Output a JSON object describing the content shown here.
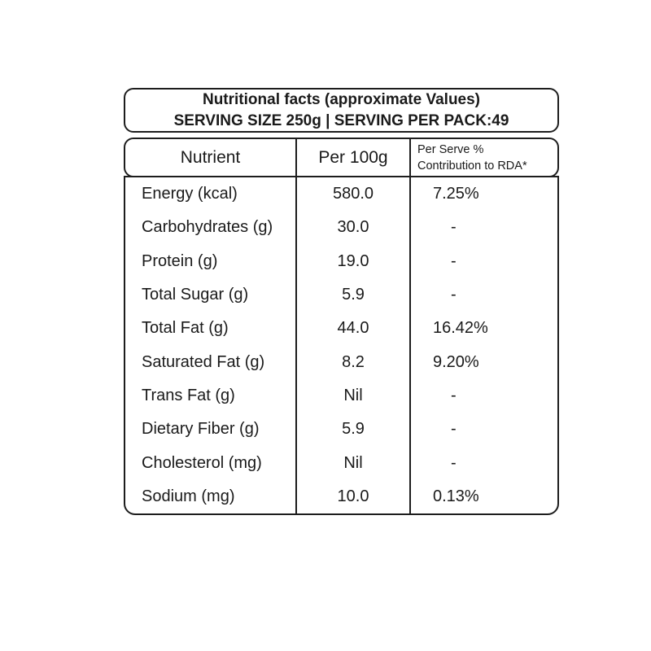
{
  "title_box": {
    "line1": "Nutritional facts (approximate Values)",
    "line2": "SERVING SIZE 250g | SERVING PER PACK:49"
  },
  "table": {
    "headers": {
      "nutrient": "Nutrient",
      "per_100g": "Per 100g",
      "rda_line1": "Per Serve %",
      "rda_line2": "Contribution to RDA*"
    },
    "rows": [
      {
        "nutrient": "Energy (kcal)",
        "per_100g": "580.0",
        "rda": "7.25%"
      },
      {
        "nutrient": "Carbohydrates (g)",
        "per_100g": "30.0",
        "rda": "-"
      },
      {
        "nutrient": "Protein (g)",
        "per_100g": "19.0",
        "rda": "-"
      },
      {
        "nutrient": "Total Sugar (g)",
        "per_100g": "5.9",
        "rda": "-"
      },
      {
        "nutrient": "Total Fat (g)",
        "per_100g": "44.0",
        "rda": "16.42%"
      },
      {
        "nutrient": "Saturated Fat (g)",
        "per_100g": "8.2",
        "rda": "9.20%"
      },
      {
        "nutrient": "Trans Fat (g)",
        "per_100g": "Nil",
        "rda": "-"
      },
      {
        "nutrient": "Dietary Fiber (g)",
        "per_100g": "5.9",
        "rda": "-"
      },
      {
        "nutrient": "Cholesterol (mg)",
        "per_100g": "Nil",
        "rda": "-"
      },
      {
        "nutrient": "Sodium (mg)",
        "per_100g": "10.0",
        "rda": "0.13%"
      }
    ]
  },
  "colors": {
    "border": "#1d1d1d",
    "text": "#1a1a1a",
    "background": "#ffffff"
  }
}
